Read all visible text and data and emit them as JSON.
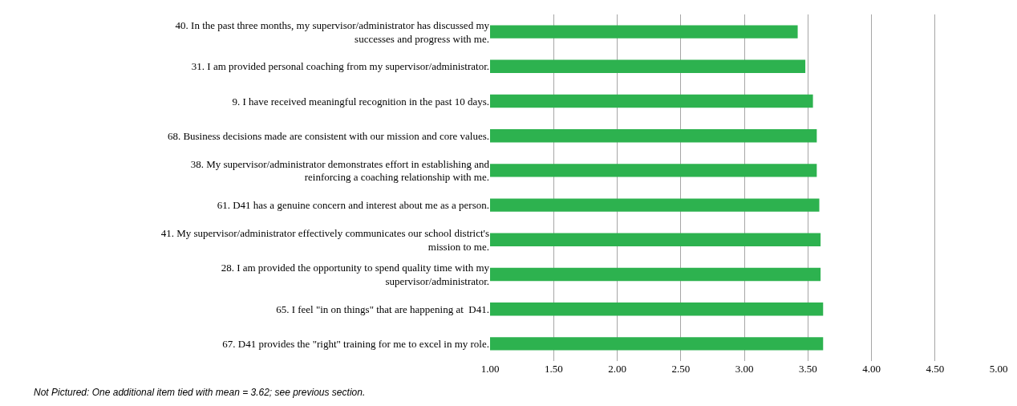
{
  "chart_data": {
    "type": "bar",
    "orientation": "horizontal",
    "categories": [
      "40. In the past three months, my supervisor/administrator has discussed my successes and progress with me.",
      "31. I am provided personal coaching from my supervisor/administrator.",
      "9. I have received meaningful recognition in the past 10 days.",
      "68. Business decisions made are consistent with our mission and core values.",
      "38. My supervisor/administrator demonstrates effort in establishing and reinforcing a coaching relationship with me.",
      "61. D41 has a genuine concern and interest about me as a person.",
      "41. My supervisor/administrator effectively communicates our school district's mission to me.",
      "28. I am provided the opportunity to spend quality time with my supervisor/administrator.",
      "65. I feel \"in on things\" that are happening at  D41.",
      "67. D41 provides the \"right\" training for me to excel in my role."
    ],
    "values": [
      3.42,
      3.48,
      3.54,
      3.57,
      3.57,
      3.59,
      3.6,
      3.6,
      3.62,
      3.62
    ],
    "color": "#2db24f",
    "xlim": [
      1,
      5
    ],
    "xticks": [
      {
        "value": 1,
        "label": "1.00"
      },
      {
        "value": 1.5,
        "label": "1.50"
      },
      {
        "value": 2,
        "label": "2.00"
      },
      {
        "value": 2.5,
        "label": "2.50"
      },
      {
        "value": 3,
        "label": "3.00"
      },
      {
        "value": 3.5,
        "label": "3.50"
      },
      {
        "value": 4,
        "label": "4.00"
      },
      {
        "value": 4.5,
        "label": "4.50"
      },
      {
        "value": 5,
        "label": "5.00"
      }
    ],
    "grid": "x",
    "annotations": [
      "Not Pictured: One additional item tied with mean = 3.62; see previous section."
    ]
  }
}
